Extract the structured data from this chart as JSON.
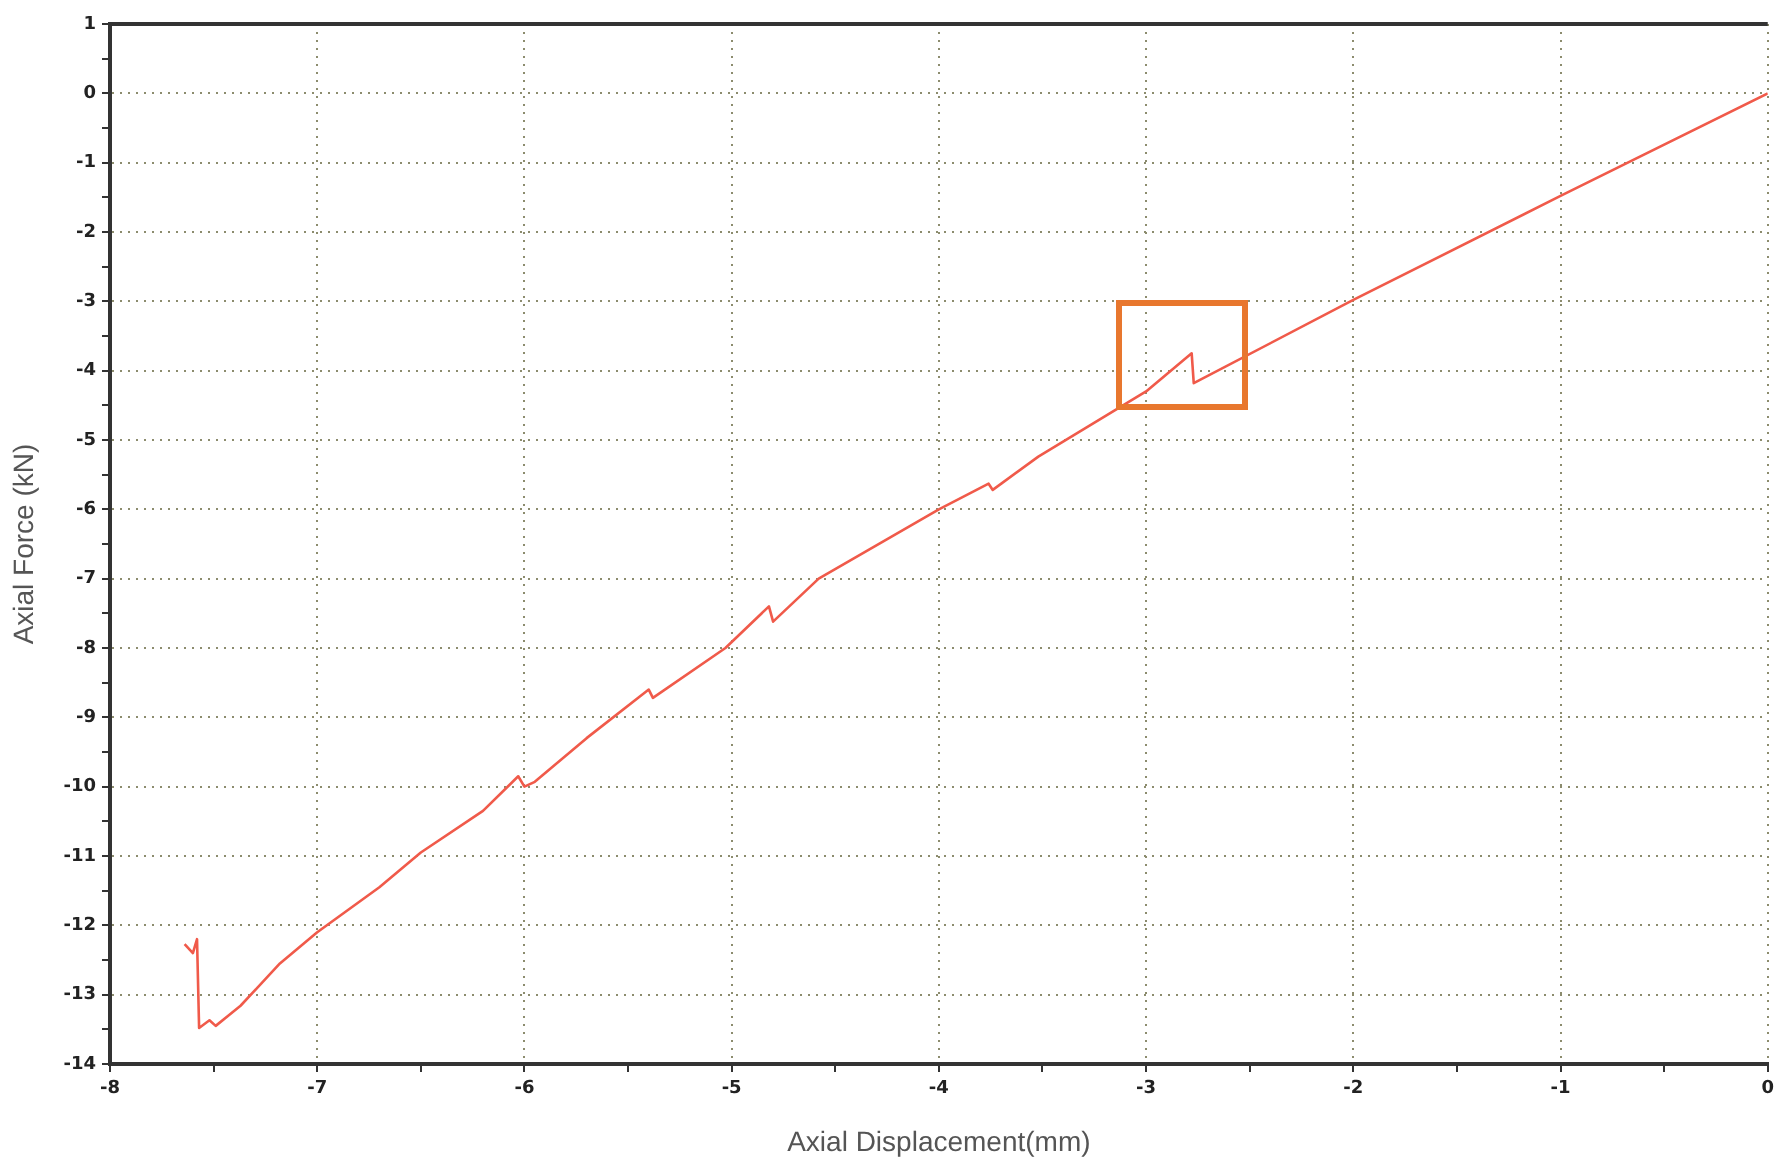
{
  "chart_data": {
    "type": "line",
    "xlabel": "Axial Displacement(mm)",
    "ylabel": "Axial Force (kN)",
    "xlim": [
      -8,
      0
    ],
    "ylim": [
      -14,
      1
    ],
    "xticks": [
      -8,
      {
        "value": -7.5,
        "label": null
      },
      -7,
      {
        "value": -6.5,
        "label": null
      },
      -6,
      {
        "value": -5.5,
        "label": null
      },
      -5,
      {
        "value": -4.5,
        "label": null
      },
      -4,
      {
        "value": -3.5,
        "label": null
      },
      -3,
      {
        "value": -2.5,
        "label": null
      },
      -2,
      {
        "value": -1.5,
        "label": null
      },
      -1,
      {
        "value": -0.5,
        "label": null
      },
      0
    ],
    "yticks": [
      -14,
      {
        "value": -13.5,
        "label": null
      },
      -13,
      {
        "value": -12.5,
        "label": null
      },
      -12,
      {
        "value": -11.5,
        "label": null
      },
      -11,
      {
        "value": -10.5,
        "label": null
      },
      -10,
      {
        "value": -9.5,
        "label": null
      },
      -9,
      {
        "value": -8.5,
        "label": null
      },
      -8,
      {
        "value": -7.5,
        "label": null
      },
      -7,
      {
        "value": -6.5,
        "label": null
      },
      -6,
      {
        "value": -5.5,
        "label": null
      },
      -5,
      {
        "value": -4.5,
        "label": null
      },
      -4,
      {
        "value": -3.5,
        "label": null
      },
      -3,
      {
        "value": -2.5,
        "label": null
      },
      -2,
      {
        "value": -1.5,
        "label": null
      },
      -1,
      {
        "value": -0.5,
        "label": null
      },
      0,
      {
        "value": 0.5,
        "label": null
      },
      1
    ],
    "grid": true,
    "legend": false,
    "marker": "none",
    "line_style": "solid",
    "series": [
      {
        "color": "#f05a4a",
        "x": [
          -7.64,
          -7.6,
          -7.58,
          -7.57,
          -7.52,
          -7.49,
          -7.37,
          -7.18,
          -7.0,
          -6.7,
          -6.5,
          -6.2,
          -6.03,
          -6.0,
          -5.95,
          -5.7,
          -5.4,
          -5.38,
          -5.03,
          -4.82,
          -4.8,
          -4.58,
          -4.0,
          -3.76,
          -3.74,
          -3.52,
          -3.0,
          -2.78,
          -2.77,
          -2.0,
          -1.0,
          0.0
        ],
        "values": [
          -12.27,
          -12.4,
          -12.2,
          -13.48,
          -13.37,
          -13.45,
          -13.16,
          -12.55,
          -12.1,
          -11.45,
          -10.95,
          -10.35,
          -9.85,
          -10.0,
          -9.93,
          -9.3,
          -8.6,
          -8.72,
          -8.0,
          -7.4,
          -7.62,
          -7.0,
          -6.0,
          -5.63,
          -5.72,
          -5.24,
          -4.3,
          -3.75,
          -4.18,
          -2.98,
          -1.48,
          0.0
        ]
      }
    ]
  }
}
